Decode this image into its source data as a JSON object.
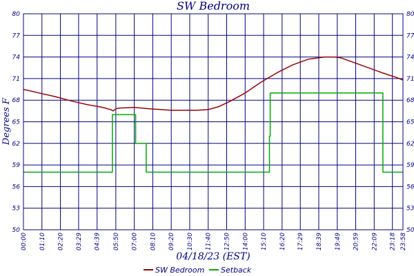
{
  "chart_data": {
    "type": "line",
    "title": "SW Bedroom",
    "xlabel": "04/18/23 (EST)",
    "ylabel": "Degrees F",
    "ylim": [
      50,
      80
    ],
    "xlim": [
      0,
      1438
    ],
    "grid": true,
    "legend_position": "bottom-center",
    "y_ticks": [
      "50",
      "53",
      "56",
      "59",
      "62",
      "65",
      "68",
      "71",
      "74",
      "77",
      "80"
    ],
    "x_ticks": [
      {
        "x": 0,
        "label": "00:00"
      },
      {
        "x": 70,
        "label": "01:10"
      },
      {
        "x": 140,
        "label": "02:20"
      },
      {
        "x": 209,
        "label": "03:29"
      },
      {
        "x": 279,
        "label": "04:39"
      },
      {
        "x": 350,
        "label": "05:50"
      },
      {
        "x": 420,
        "label": "07:00"
      },
      {
        "x": 490,
        "label": "08:10"
      },
      {
        "x": 560,
        "label": "09:20"
      },
      {
        "x": 630,
        "label": "10:30"
      },
      {
        "x": 700,
        "label": "11:40"
      },
      {
        "x": 770,
        "label": "12:50"
      },
      {
        "x": 840,
        "label": "14:00"
      },
      {
        "x": 910,
        "label": "15:10"
      },
      {
        "x": 980,
        "label": "16:20"
      },
      {
        "x": 1049,
        "label": "17:29"
      },
      {
        "x": 1119,
        "label": "18:39"
      },
      {
        "x": 1189,
        "label": "19:49"
      },
      {
        "x": 1259,
        "label": "20:59"
      },
      {
        "x": 1329,
        "label": "22:09"
      },
      {
        "x": 1398,
        "label": "23:18"
      },
      {
        "x": 1438,
        "label": "23:58"
      }
    ],
    "series": [
      {
        "name": "SW Bedroom",
        "color": "#990000",
        "x": [
          0,
          60,
          120,
          180,
          240,
          300,
          330,
          340,
          350,
          360,
          420,
          480,
          520,
          560,
          600,
          660,
          700,
          740,
          780,
          840,
          900,
          960,
          1020,
          1080,
          1140,
          1180,
          1200,
          1240,
          1300,
          1360,
          1410,
          1438
        ],
        "y": [
          69.5,
          69.0,
          68.5,
          67.9,
          67.4,
          67.0,
          66.7,
          66.5,
          66.8,
          66.9,
          67.0,
          66.8,
          66.7,
          66.6,
          66.6,
          66.6,
          66.7,
          67.1,
          67.8,
          69.0,
          70.5,
          71.8,
          72.9,
          73.7,
          74.0,
          74.0,
          73.9,
          73.4,
          72.6,
          71.8,
          71.2,
          70.8
        ]
      },
      {
        "name": "Setback",
        "color": "#00aa00",
        "x": [
          0,
          337,
          337,
          425,
          425,
          465,
          465,
          465,
          465,
          932,
          932,
          935,
          935,
          1362,
          1362,
          1383,
          1383,
          1438
        ],
        "y": [
          58,
          58,
          66,
          66,
          62,
          62,
          60,
          60,
          58,
          58,
          63,
          63,
          69,
          69,
          58,
          58,
          58,
          58
        ]
      }
    ]
  }
}
